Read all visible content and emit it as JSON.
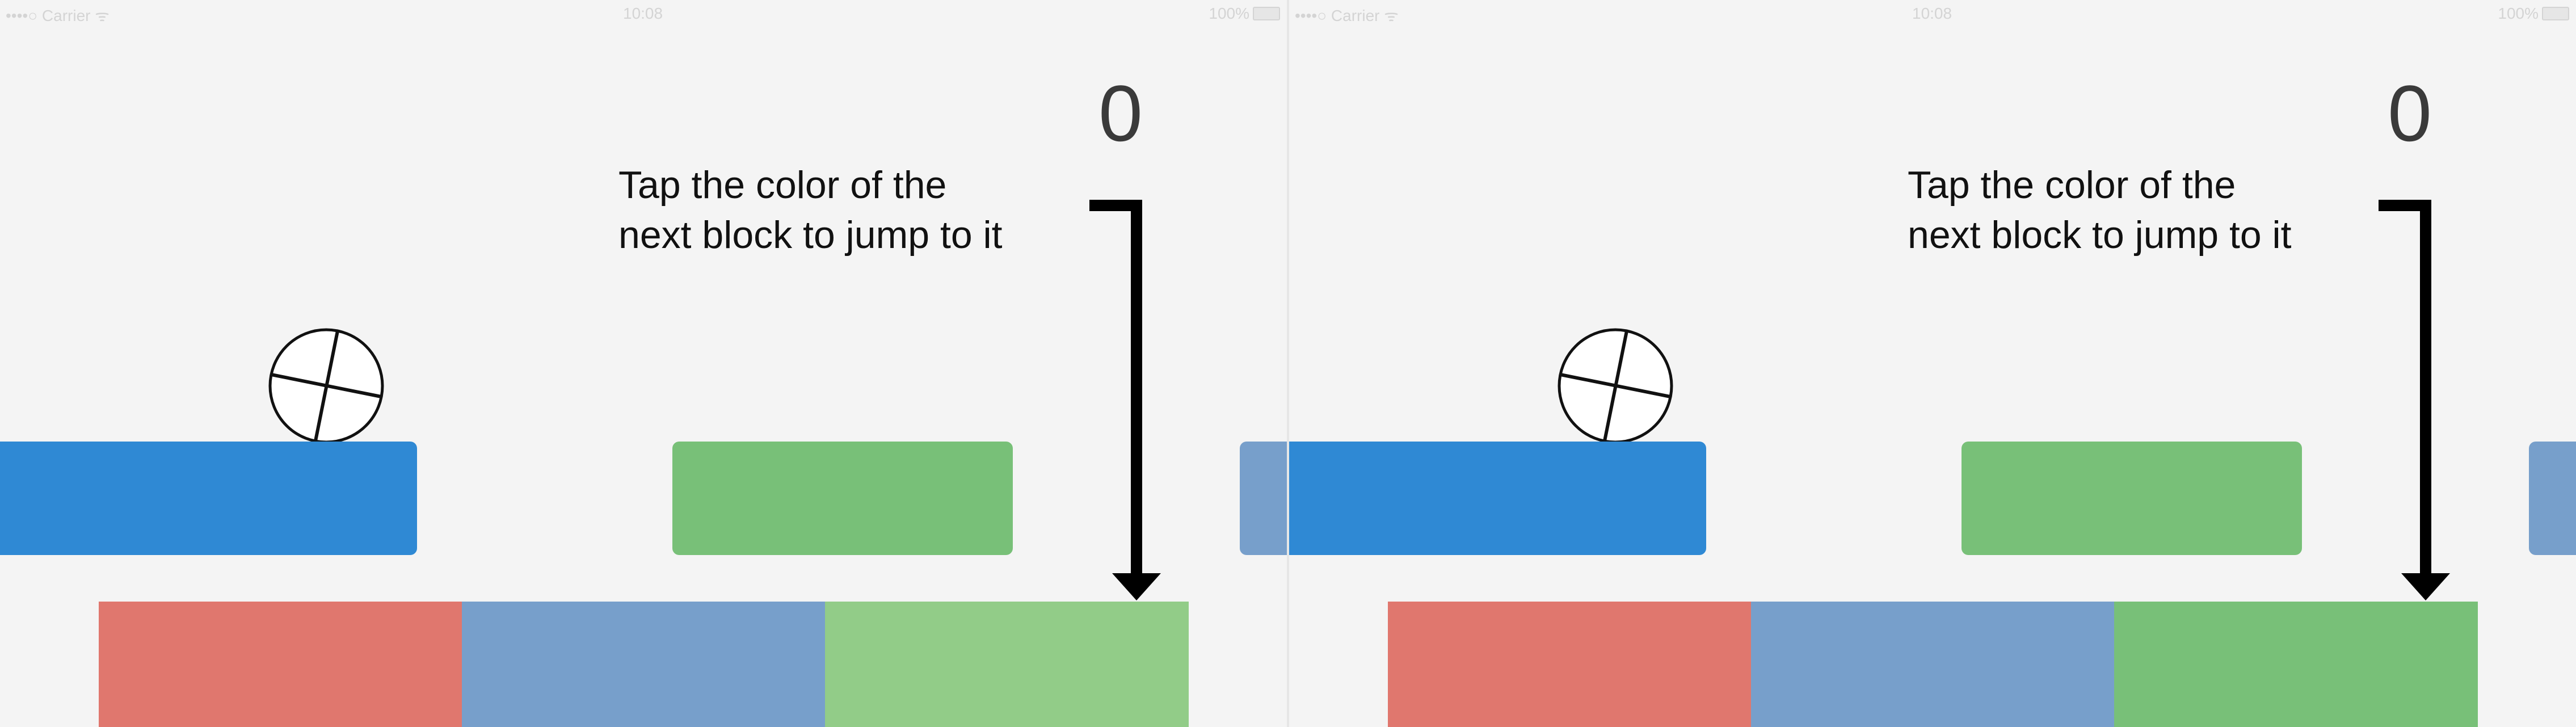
{
  "status_bar": {
    "carrier": "••••○ Carrier ᯤ",
    "time": "10:08",
    "battery": "100%"
  },
  "screens": [
    {
      "score": "0",
      "instruction_line1": "Tap the color of the",
      "instruction_line2": "next block to jump to it",
      "colors": {
        "block_blue": "#2f89d4",
        "block_green": "#78c078",
        "palette_red": "#e0776e",
        "palette_blue": "#779fcb",
        "palette_green": "#92cc88"
      }
    },
    {
      "score": "0",
      "instruction_line1": "Tap the color of the",
      "instruction_line2": "next block to jump to it",
      "colors": {
        "block_blue": "#2f89d4",
        "block_green": "#78c078",
        "palette_red": "#e0776e",
        "palette_blue": "#779fcb",
        "palette_green": "#78c078"
      }
    }
  ]
}
